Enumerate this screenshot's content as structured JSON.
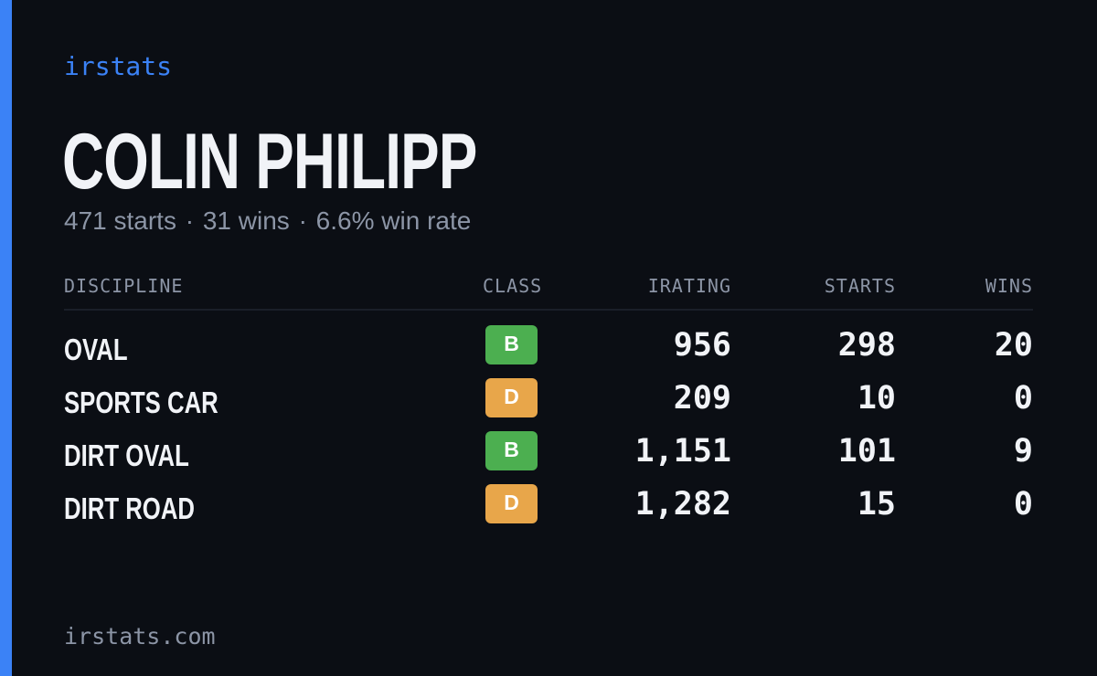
{
  "brand": "irstats",
  "driver": {
    "name": "COLIN PHILIPP",
    "starts_text": "471 starts",
    "wins_text": "31 wins",
    "winrate_text": "6.6% win rate",
    "separator": "·"
  },
  "table": {
    "headers": {
      "discipline": "DISCIPLINE",
      "class": "CLASS",
      "irating": "IRATING",
      "starts": "STARTS",
      "wins": "WINS"
    },
    "rows": [
      {
        "discipline": "OVAL",
        "class": "B",
        "irating": "956",
        "starts": "298",
        "wins": "20"
      },
      {
        "discipline": "SPORTS CAR",
        "class": "D",
        "irating": "209",
        "starts": "10",
        "wins": "0"
      },
      {
        "discipline": "DIRT OVAL",
        "class": "B",
        "irating": "1,151",
        "starts": "101",
        "wins": "9"
      },
      {
        "discipline": "DIRT ROAD",
        "class": "D",
        "irating": "1,282",
        "starts": "15",
        "wins": "0"
      }
    ]
  },
  "class_colors": {
    "B": "#4caf50",
    "D": "#e8a64a"
  },
  "accent_color": "#3b82f6",
  "footer": "irstats.com"
}
